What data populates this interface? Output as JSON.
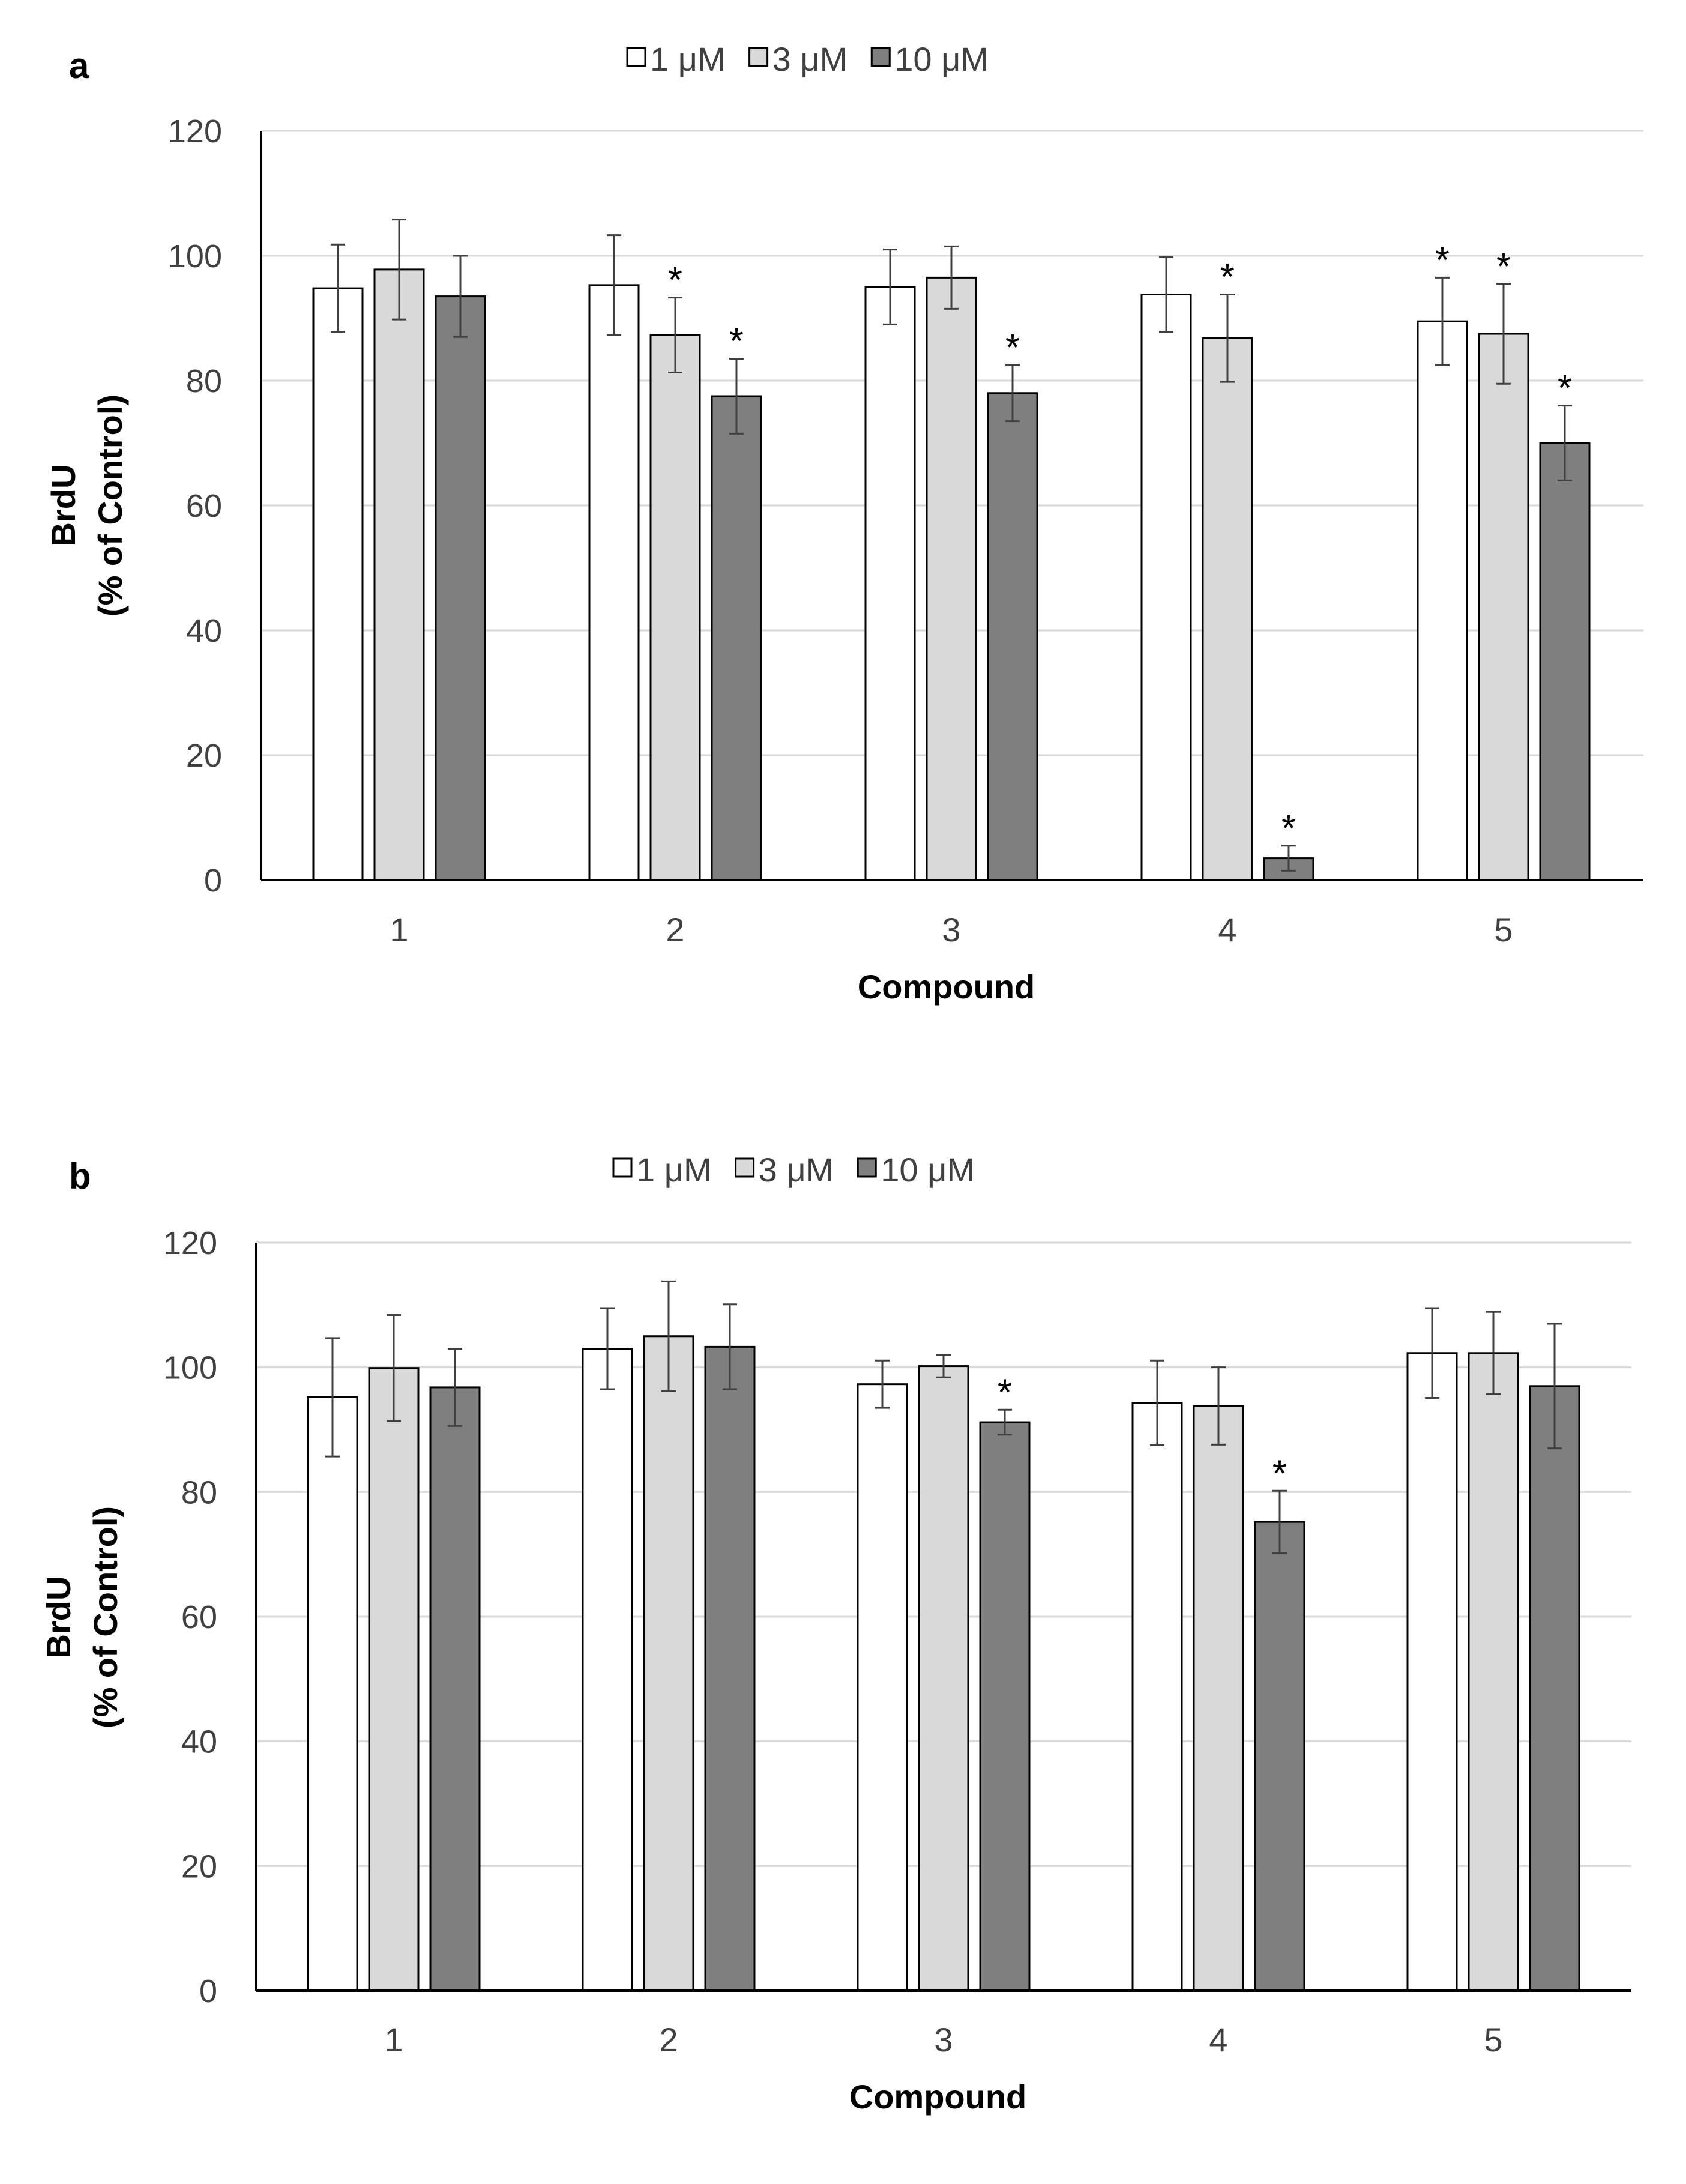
{
  "colors": {
    "s1": "#ffffff",
    "s2": "#d9d9d9",
    "s3": "#7f7f7f",
    "edge": "#000000",
    "grid": "#d9d9d9",
    "axis": "#000000",
    "text": "#404040",
    "errbar": "#404040"
  },
  "chart_data": [
    {
      "type": "bar",
      "panel_label": "a",
      "xlabel": "Compound",
      "ylabel_line1": "BrdU",
      "ylabel_line2": "(% of Control)",
      "ylim": [
        0,
        120
      ],
      "yticks": [
        "0",
        "20",
        "40",
        "60",
        "80",
        "100",
        "120"
      ],
      "grid": true,
      "legend_position": "top",
      "categories": [
        "1",
        "2",
        "3",
        "4",
        "5"
      ],
      "series": [
        {
          "name": "1 μM",
          "values": [
            94.8,
            95.3,
            95.0,
            93.8,
            89.5
          ],
          "errors": [
            7.0,
            8.0,
            6.0,
            6.0,
            7.0
          ],
          "significant": [
            false,
            false,
            false,
            false,
            true
          ]
        },
        {
          "name": "3 μM",
          "values": [
            97.8,
            87.3,
            96.5,
            86.8,
            87.5
          ],
          "errors": [
            8.0,
            6.0,
            5.0,
            7.0,
            8.0
          ],
          "significant": [
            false,
            true,
            false,
            true,
            true
          ]
        },
        {
          "name": "10 μM",
          "values": [
            93.5,
            77.5,
            78.0,
            3.5,
            70.0
          ],
          "errors": [
            6.5,
            6.0,
            4.5,
            2.0,
            6.0
          ],
          "significant": [
            false,
            true,
            true,
            true,
            true
          ]
        }
      ],
      "significance_marker": "*"
    },
    {
      "type": "bar",
      "panel_label": "b",
      "xlabel": "Compound",
      "ylabel_line1": "BrdU",
      "ylabel_line2": "(% of Control)",
      "ylim": [
        0,
        120
      ],
      "yticks": [
        "0",
        "20",
        "40",
        "60",
        "80",
        "100",
        "120"
      ],
      "grid": true,
      "legend_position": "top",
      "categories": [
        "1",
        "2",
        "3",
        "4",
        "5"
      ],
      "series": [
        {
          "name": "1 μM",
          "values": [
            95.2,
            103.0,
            97.3,
            94.3,
            102.3
          ],
          "errors": [
            9.5,
            6.5,
            3.8,
            6.8,
            7.2
          ],
          "significant": [
            false,
            false,
            false,
            false,
            false
          ]
        },
        {
          "name": "3 μM",
          "values": [
            99.9,
            105.0,
            100.2,
            93.8,
            102.3
          ],
          "errors": [
            8.5,
            8.8,
            1.8,
            6.2,
            6.6
          ],
          "significant": [
            false,
            false,
            false,
            false,
            false
          ]
        },
        {
          "name": "10 μM",
          "values": [
            96.8,
            103.3,
            91.2,
            75.2,
            97.0
          ],
          "errors": [
            6.2,
            6.8,
            2.0,
            5.0,
            10.0
          ],
          "significant": [
            false,
            false,
            true,
            true,
            false
          ]
        }
      ],
      "significance_marker": "*"
    }
  ]
}
